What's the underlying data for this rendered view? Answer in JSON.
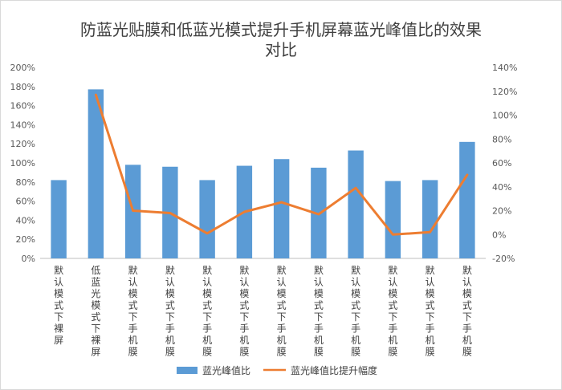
{
  "chart_data": {
    "type": "bar",
    "title_lines": [
      "防蓝光贴膜和低蓝光模式提升手机屏幕蓝光峰值比的效果",
      "对比"
    ],
    "categories": [
      "默认模式下裸屏",
      "低蓝光模式下裸屏",
      "默认模式下手机膜",
      "默认模式下手机膜",
      "默认模式下手机膜",
      "默认模式下手机膜",
      "默认模式下手机膜",
      "默认模式下手机膜",
      "默认模式下手机膜",
      "默认模式下手机膜",
      "默认模式下手机膜",
      "默认模式下手机膜"
    ],
    "series": [
      {
        "name": "蓝光峰值比",
        "type": "bar",
        "axis": "left",
        "color": "#5b9bd5",
        "values": [
          0.82,
          1.77,
          0.98,
          0.96,
          0.82,
          0.97,
          1.04,
          0.95,
          1.13,
          0.81,
          0.82,
          1.22
        ]
      },
      {
        "name": "蓝光峰值比提升幅度",
        "type": "line",
        "axis": "right",
        "color": "#ed7d31",
        "values": [
          null,
          1.17,
          0.2,
          0.18,
          0.01,
          0.19,
          0.27,
          0.17,
          0.39,
          0.0,
          0.02,
          0.5
        ]
      }
    ],
    "y_left": {
      "min": 0,
      "max": 2.0,
      "step": 0.2,
      "ticks": [
        "0%",
        "20%",
        "40%",
        "60%",
        "80%",
        "100%",
        "120%",
        "140%",
        "160%",
        "180%",
        "200%"
      ]
    },
    "y_right": {
      "min": -0.2,
      "max": 1.4,
      "step": 0.2,
      "ticks": [
        "-20%",
        "0%",
        "20%",
        "40%",
        "60%",
        "80%",
        "100%",
        "120%",
        "140%"
      ]
    },
    "grid": false,
    "legend": "bottom"
  }
}
